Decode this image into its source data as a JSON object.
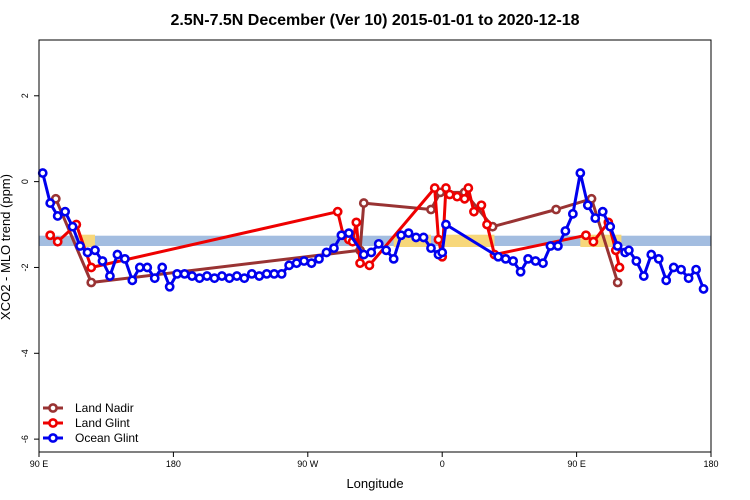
{
  "chart_data": {
    "type": "line",
    "title": "2.5N-7.5N December (Ver 10)   2015-01-01 to 2020-12-18",
    "xlabel": "Longitude",
    "ylabel": "XCO2 - MLO trend (ppm)",
    "xlim": [
      90,
      450
    ],
    "ylim": [
      -6.3,
      3.3
    ],
    "x_ticks": [
      {
        "value": 90,
        "label": "90 E"
      },
      {
        "value": 162,
        "label": "180"
      },
      {
        "value": 234,
        "label": "90 W"
      },
      {
        "value": 306,
        "label": "0"
      },
      {
        "value": 378,
        "label": "90 E"
      },
      {
        "value": 450,
        "label": "180"
      }
    ],
    "y_ticks": [
      {
        "value": 2,
        "label": "2"
      },
      {
        "value": 0,
        "label": "0"
      },
      {
        "value": -2,
        "label": "-2"
      },
      {
        "value": -4,
        "label": "-4"
      },
      {
        "value": -6,
        "label": "-6"
      }
    ],
    "band": {
      "name": "reference-band",
      "y_center": -1.38,
      "half_width": 0.12,
      "color": "#a3bde0",
      "land_color": "#f7d77a",
      "land_ranges": [
        [
          111,
          120
        ],
        [
          280,
          300
        ],
        [
          306,
          334
        ],
        [
          380,
          402
        ]
      ]
    },
    "series": [
      {
        "name": "Land Nadir",
        "color": "#993333",
        "points": [
          [
            99,
            -0.4
          ],
          [
            118,
            -2.35
          ],
          [
            262,
            -1.6
          ],
          [
            264,
            -0.5
          ],
          [
            300,
            -0.65
          ],
          [
            305,
            -0.25
          ],
          [
            318,
            -0.25
          ],
          [
            333,
            -1.05
          ],
          [
            367,
            -0.65
          ],
          [
            386,
            -0.4
          ],
          [
            400,
            -2.35
          ]
        ]
      },
      {
        "name": "Land Glint",
        "color": "#ee0000",
        "points": [
          [
            96,
            -1.25
          ],
          [
            100,
            -1.4
          ],
          [
            110,
            -1.0
          ],
          [
            118,
            -2.0
          ],
          [
            250,
            -0.7
          ],
          [
            253,
            -1.25
          ],
          [
            256,
            -1.35
          ],
          [
            258,
            -1.4
          ],
          [
            260,
            -0.95
          ],
          [
            262,
            -1.9
          ],
          [
            267,
            -1.95
          ],
          [
            302,
            -0.15
          ],
          [
            304,
            -1.35
          ],
          [
            306,
            -1.75
          ],
          [
            308,
            -0.15
          ],
          [
            310,
            -0.3
          ],
          [
            314,
            -0.35
          ],
          [
            318,
            -0.4
          ],
          [
            320,
            -0.15
          ],
          [
            323,
            -0.7
          ],
          [
            327,
            -0.55
          ],
          [
            330,
            -1.0
          ],
          [
            334,
            -1.7
          ],
          [
            383,
            -1.25
          ],
          [
            387,
            -1.4
          ],
          [
            395,
            -0.95
          ],
          [
            399,
            -1.6
          ],
          [
            401,
            -2.0
          ]
        ]
      },
      {
        "name": "Ocean Glint",
        "color": "#0000ee",
        "points": [
          [
            92,
            0.2
          ],
          [
            96,
            -0.5
          ],
          [
            100,
            -0.8
          ],
          [
            104,
            -0.7
          ],
          [
            108,
            -1.05
          ],
          [
            112,
            -1.5
          ],
          [
            116,
            -1.65
          ],
          [
            120,
            -1.6
          ],
          [
            124,
            -1.85
          ],
          [
            128,
            -2.2
          ],
          [
            132,
            -1.7
          ],
          [
            136,
            -1.8
          ],
          [
            140,
            -2.3
          ],
          [
            144,
            -2.0
          ],
          [
            148,
            -2.0
          ],
          [
            152,
            -2.25
          ],
          [
            156,
            -2.0
          ],
          [
            160,
            -2.45
          ],
          [
            164,
            -2.15
          ],
          [
            168,
            -2.15
          ],
          [
            172,
            -2.2
          ],
          [
            176,
            -2.25
          ],
          [
            180,
            -2.2
          ],
          [
            184,
            -2.25
          ],
          [
            188,
            -2.2
          ],
          [
            192,
            -2.25
          ],
          [
            196,
            -2.2
          ],
          [
            200,
            -2.25
          ],
          [
            204,
            -2.15
          ],
          [
            208,
            -2.2
          ],
          [
            212,
            -2.15
          ],
          [
            216,
            -2.15
          ],
          [
            220,
            -2.15
          ],
          [
            224,
            -1.95
          ],
          [
            228,
            -1.9
          ],
          [
            232,
            -1.85
          ],
          [
            236,
            -1.9
          ],
          [
            240,
            -1.8
          ],
          [
            244,
            -1.65
          ],
          [
            248,
            -1.55
          ],
          [
            252,
            -1.25
          ],
          [
            256,
            -1.2
          ],
          [
            264,
            -1.7
          ],
          [
            268,
            -1.65
          ],
          [
            272,
            -1.45
          ],
          [
            276,
            -1.6
          ],
          [
            280,
            -1.8
          ],
          [
            284,
            -1.25
          ],
          [
            288,
            -1.2
          ],
          [
            292,
            -1.3
          ],
          [
            296,
            -1.3
          ],
          [
            300,
            -1.55
          ],
          [
            304,
            -1.7
          ],
          [
            306,
            -1.65
          ],
          [
            308,
            -1.0
          ],
          [
            336,
            -1.75
          ],
          [
            340,
            -1.8
          ],
          [
            344,
            -1.85
          ],
          [
            348,
            -2.1
          ],
          [
            352,
            -1.8
          ],
          [
            356,
            -1.85
          ],
          [
            360,
            -1.9
          ],
          [
            364,
            -1.5
          ],
          [
            368,
            -1.5
          ],
          [
            372,
            -1.15
          ],
          [
            376,
            -0.75
          ],
          [
            380,
            0.2
          ],
          [
            384,
            -0.55
          ],
          [
            388,
            -0.85
          ],
          [
            392,
            -0.7
          ],
          [
            396,
            -1.05
          ],
          [
            400,
            -1.5
          ],
          [
            404,
            -1.65
          ],
          [
            406,
            -1.6
          ],
          [
            410,
            -1.85
          ],
          [
            414,
            -2.2
          ],
          [
            418,
            -1.7
          ],
          [
            422,
            -1.8
          ],
          [
            426,
            -2.3
          ],
          [
            430,
            -2.0
          ],
          [
            434,
            -2.05
          ],
          [
            438,
            -2.25
          ],
          [
            442,
            -2.05
          ],
          [
            446,
            -2.5
          ]
        ]
      }
    ],
    "legend_position": "bottom-left"
  }
}
